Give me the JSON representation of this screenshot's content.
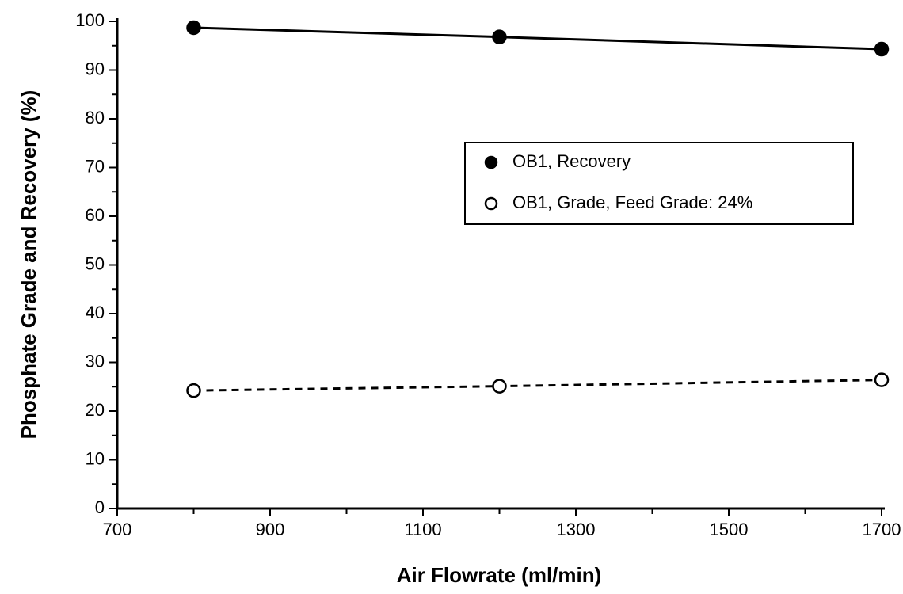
{
  "chart_data": {
    "type": "line",
    "xlabel": "Air Flowrate (ml/min)",
    "ylabel": "Phosphate Grade and Recovery (%)",
    "x": [
      800,
      1200,
      1700
    ],
    "series": [
      {
        "name": "OB1, Recovery",
        "color": "#000000",
        "linestyle": "solid",
        "marker_fill": "#000000",
        "values": [
          98.7,
          96.8,
          94.3
        ]
      },
      {
        "name": "OB1, Grade, Feed Grade: 24%",
        "color": "#000000",
        "linestyle": "dashed",
        "marker_fill": "none",
        "values": [
          24.2,
          25.1,
          26.4
        ]
      }
    ],
    "xlim": [
      700,
      1700
    ],
    "xticks": [
      700,
      900,
      1100,
      1300,
      1500,
      1700
    ],
    "xminorticks": [
      800,
      1000,
      1200,
      1400,
      1600
    ],
    "ylim": [
      0,
      100
    ],
    "yticks": [
      0,
      10,
      20,
      30,
      40,
      50,
      60,
      70,
      80,
      90,
      100
    ],
    "yminorticks": [
      5,
      15,
      25,
      35,
      45,
      55,
      65,
      75,
      85,
      95
    ],
    "legend": "upper right",
    "grid": false
  }
}
